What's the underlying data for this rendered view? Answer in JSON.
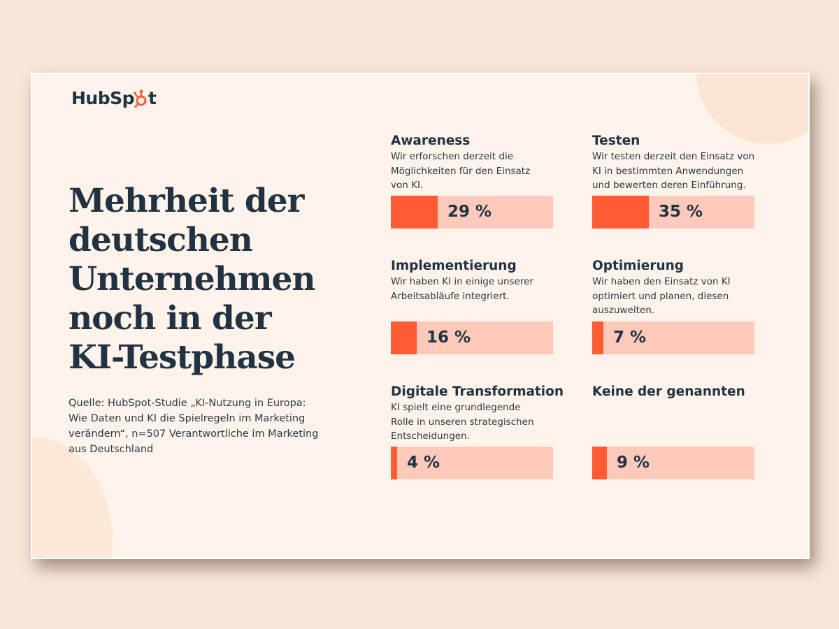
{
  "brand": {
    "logo_text_before": "HubSp",
    "logo_text_after": "t",
    "accent_color": "#ff5c35",
    "bar_track_color": "#fcc9bb",
    "text_color": "#213343"
  },
  "headline": {
    "lines": [
      "Mehrheit der",
      "deutschen",
      "Unternehmen",
      "noch in der",
      "KI-Testphase"
    ]
  },
  "source": {
    "lines": [
      "Quelle: HubSpot-Studie „KI-Nutzung in Europa:",
      "Wie Daten und KI die Spielregeln im Marketing",
      "verändern“, n=507 Verantwortliche im Marketing",
      "aus Deutschland"
    ]
  },
  "chart_data": {
    "type": "bar",
    "orientation": "horizontal",
    "title": "Mehrheit der deutschen Unternehmen noch in der KI-Testphase",
    "unit": "%",
    "xlim": [
      0,
      100
    ],
    "grid": false,
    "legend": "none",
    "categories": [
      "Awareness",
      "Testen",
      "Implementierung",
      "Optimierung",
      "Digitale Transformation",
      "Keine der genannten"
    ],
    "values": [
      29,
      35,
      16,
      7,
      4,
      9
    ],
    "items": [
      {
        "title": "Awareness",
        "desc_lines": [
          "Wir erforschen derzeit die",
          "Möglichkeiten für den Einsatz",
          "von KI."
        ],
        "value": 29,
        "label": "29 %"
      },
      {
        "title": "Testen",
        "desc_lines": [
          "Wir testen derzeit den Einsatz von",
          "KI in bestimmten Anwendungen",
          "und bewerten deren Einführung."
        ],
        "value": 35,
        "label": "35 %"
      },
      {
        "title": "Implementierung",
        "desc_lines": [
          "Wir haben KI in einige unserer",
          "Arbeitsabläufe integriert.",
          ""
        ],
        "value": 16,
        "label": "16 %"
      },
      {
        "title": "Optimierung",
        "desc_lines": [
          "Wir haben den Einsatz von KI",
          "optimiert und planen, diesen",
          "auszuweiten."
        ],
        "value": 7,
        "label": "7 %"
      },
      {
        "title": "Digitale Transformation",
        "desc_lines": [
          "KI spielt eine grundlegende",
          "Rolle in unseren strategischen",
          "Entscheidungen."
        ],
        "value": 4,
        "label": "4 %"
      },
      {
        "title": "Keine der genannten",
        "desc_lines": [
          "",
          "",
          ""
        ],
        "value": 9,
        "label": "9 %"
      }
    ]
  }
}
